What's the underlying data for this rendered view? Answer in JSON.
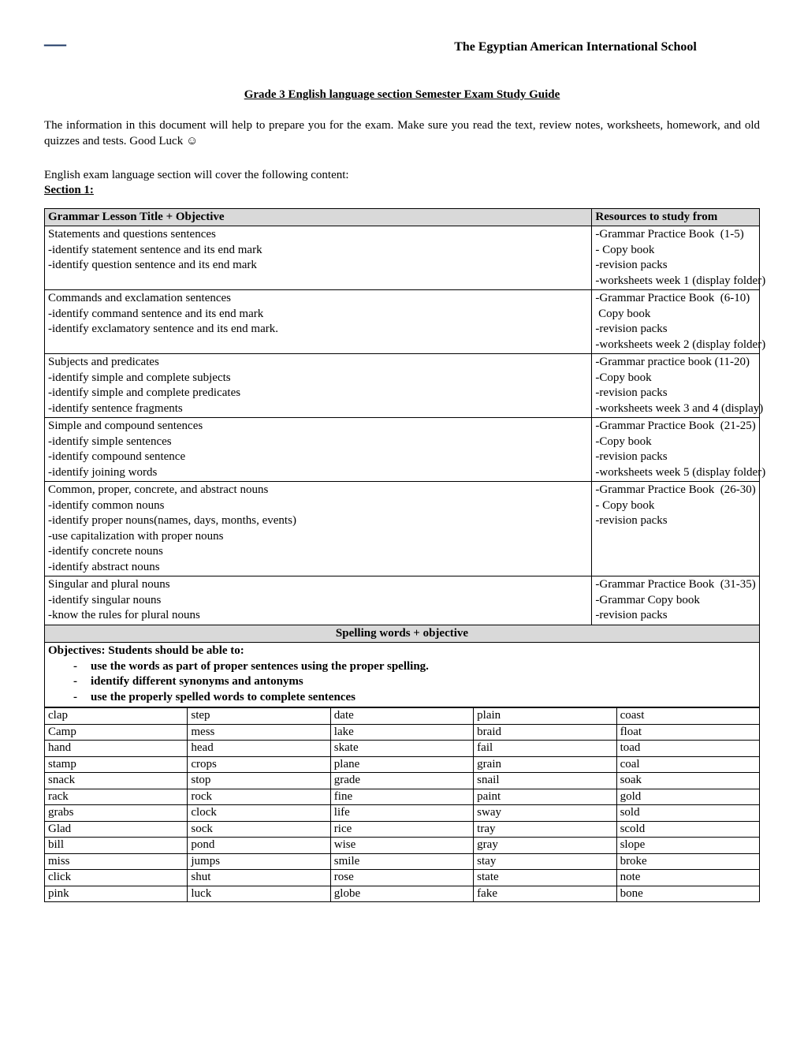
{
  "header": {
    "dash": "—",
    "school": "The Egyptian American International School"
  },
  "title": "Grade 3 English language section Semester Exam Study Guide",
  "intro": "The information in this document will help to prepare you for the exam.  Make sure you read the text, review notes, worksheets, homework, and old quizzes and tests.  Good Luck ☺",
  "cover": "English exam language section will cover the following content:",
  "section1": "Section 1:",
  "grammar_table": {
    "headers": [
      "Grammar Lesson Title + Objective",
      "Resources to study from"
    ],
    "rows": [
      {
        "left": "Statements and questions sentences\n-identify statement sentence and its end mark\n-identify question sentence and its end mark",
        "right": "-Grammar Practice Book  (1-5)\n- Copy book\n-revision packs\n-worksheets week 1 (display folder)"
      },
      {
        "left": "Commands and exclamation sentences\n-identify command sentence and its end mark\n-identify exclamatory sentence and its end mark.",
        "right": "-Grammar Practice Book  (6-10)\n Copy book\n-revision packs\n-worksheets week 2 (display folder)"
      },
      {
        "left": "Subjects and predicates\n-identify simple and complete subjects\n-identify simple and complete predicates\n-identify sentence fragments",
        "right": "-Grammar practice book (11-20)\n-Copy book\n-revision packs\n-worksheets week 3 and 4 (display)"
      },
      {
        "left": "Simple and compound sentences\n-identify simple sentences\n-identify compound sentence\n-identify joining words",
        "right": "-Grammar Practice Book  (21-25)\n-Copy book\n-revision packs\n-worksheets week 5 (display folder)"
      },
      {
        "left": "Common, proper, concrete, and abstract nouns\n-identify common nouns\n-identify proper nouns(names, days, months, events)\n-use capitalization with proper nouns\n-identify concrete nouns\n-identify abstract nouns",
        "right": "-Grammar Practice Book  (26-30)\n- Copy book\n-revision packs"
      },
      {
        "left": "Singular and plural nouns\n-identify singular nouns\n-know the rules for plural nouns",
        "right": "-Grammar Practice Book  (31-35)\n-Grammar Copy book\n-revision packs"
      }
    ]
  },
  "spelling_header": "Spelling words  + objective",
  "objectives": {
    "lead": "Objectives: Students should be able to:",
    "items": [
      "use the words as part of proper sentences using the proper spelling.",
      "identify different synonyms and antonyms",
      "use the properly spelled words to complete sentences"
    ]
  },
  "spelling_words": [
    [
      "clap",
      "step",
      "date",
      "plain",
      "coast"
    ],
    [
      "Camp",
      "mess",
      "lake",
      "braid",
      "float"
    ],
    [
      "hand",
      "head",
      "skate",
      "fail",
      "toad"
    ],
    [
      "stamp",
      "crops",
      "plane",
      "grain",
      "coal"
    ],
    [
      "snack",
      "stop",
      "grade",
      "snail",
      "soak"
    ],
    [
      "rack",
      "rock",
      "fine",
      "paint",
      "gold"
    ],
    [
      "grabs",
      "clock",
      "life",
      "sway",
      "sold"
    ],
    [
      "Glad",
      "sock",
      "rice",
      "tray",
      "scold"
    ],
    [
      "bill",
      "pond",
      "wise",
      "gray",
      "slope"
    ],
    [
      "miss",
      "jumps",
      "smile",
      "stay",
      "broke"
    ],
    [
      "click",
      "shut",
      "rose",
      "state",
      "note"
    ],
    [
      "pink",
      "luck",
      "globe",
      "fake",
      "bone"
    ]
  ]
}
